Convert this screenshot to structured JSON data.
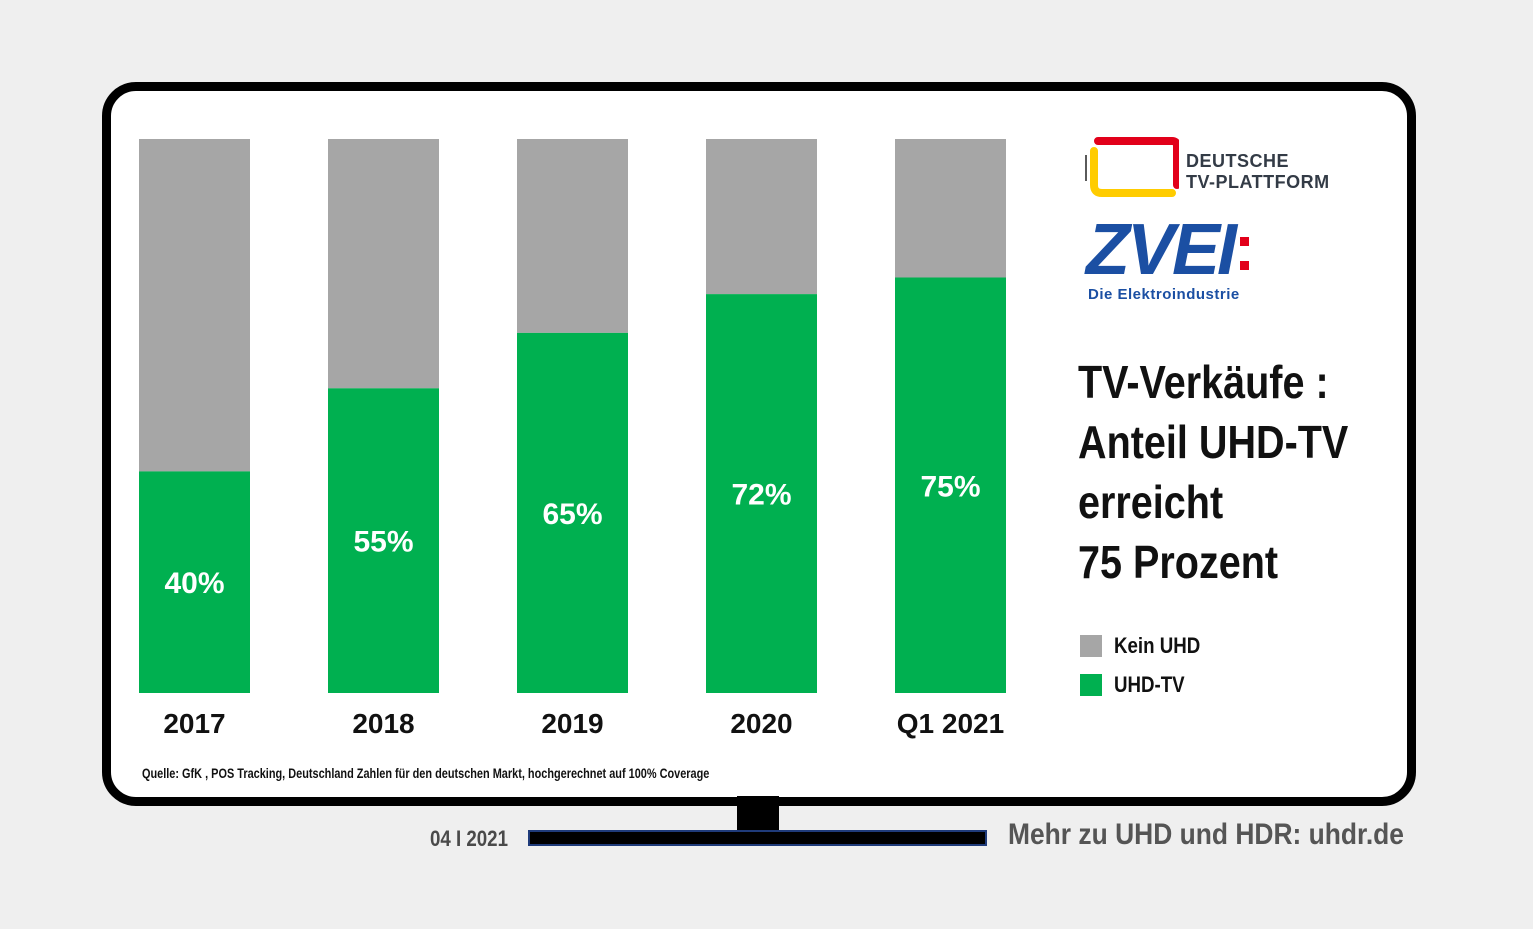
{
  "colors": {
    "background": "#efefef",
    "screen": "#ffffff",
    "frame": "#000000",
    "uhd": "#00b050",
    "no_uhd": "#a6a6a6"
  },
  "chart_data": {
    "type": "bar",
    "stacked": true,
    "categories": [
      "2017",
      "2018",
      "2019",
      "2020",
      "Q1 2021"
    ],
    "series": [
      {
        "name": "UHD-TV",
        "color": "#00b050",
        "values": [
          40,
          55,
          65,
          72,
          75
        ]
      },
      {
        "name": "Kein UHD",
        "color": "#a6a6a6",
        "values": [
          60,
          45,
          35,
          28,
          25
        ]
      }
    ],
    "value_labels": [
      "40%",
      "55%",
      "65%",
      "72%",
      "75%"
    ],
    "ylim": [
      0,
      100
    ],
    "title": "TV-Verkäufe : Anteil UHD-TV erreicht 75 Prozent",
    "title_lines": [
      "TV-Verkäufe :",
      "Anteil UHD-TV",
      "erreicht",
      "75 Prozent"
    ],
    "legend": [
      "Kein UHD",
      "UHD-TV"
    ],
    "grid": false,
    "legend_placement": "right"
  },
  "source": "Quelle: GfK , POS Tracking, Deutschland Zahlen für den deutschen Markt, hochgerechnet auf 100% Coverage",
  "logos": {
    "dtp": "DEUTSCHE\nTV-PLATTFORM",
    "zvei": "ZVEI",
    "zvei_sub": "Die Elektroindustrie"
  },
  "footer": {
    "date": "04 I 2021",
    "link": "Mehr zu UHD und HDR: uhdr.de"
  }
}
